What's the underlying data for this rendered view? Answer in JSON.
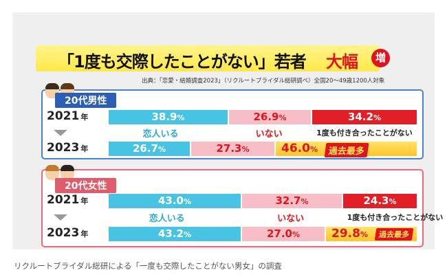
{
  "header": {
    "title": "「1度も交際したことがない」若者",
    "title_emphasis": "大幅",
    "badge": "増",
    "source": "出典：「恋愛・結婚調査2023」（リクルートブライダル総研調べ）全国20〜49歳1200人対象"
  },
  "colors": {
    "in_relationship": "#49c3e3",
    "not_in_relationship": "#f7bec6",
    "never_dated": "#e21f26",
    "highlight": "#ffd23a",
    "male_frame": "#4b7fd0",
    "female_frame": "#e86c78"
  },
  "chart_data": {
    "type": "bar",
    "stacked": true,
    "orientation": "horizontal",
    "unit": "%",
    "categories": [
      "恋人いる",
      "いない",
      "1度も付き合ったことがない"
    ],
    "groups": [
      {
        "name": "20代男性",
        "rows": [
          {
            "year": "2021",
            "values": [
              38.9,
              26.9,
              34.2
            ]
          },
          {
            "year": "2023",
            "values": [
              26.7,
              27.3,
              46.0
            ],
            "badge": "過去最多"
          }
        ]
      },
      {
        "name": "20代女性",
        "rows": [
          {
            "year": "2021",
            "values": [
              43.0,
              32.7,
              24.3
            ]
          },
          {
            "year": "2023",
            "values": [
              43.2,
              27.0,
              29.8
            ],
            "badge": "過去最多"
          }
        ]
      }
    ]
  },
  "labels": {
    "year_suffix": "年",
    "pct_suffix": "%",
    "in_relationship": "恋人いる",
    "not_in_relationship": "いない",
    "never_dated": "1度も付き合ったことがない",
    "record": "過去最多"
  },
  "caption": "リクルートブライダル総研による「一度も交際したことがない男女」の調査"
}
